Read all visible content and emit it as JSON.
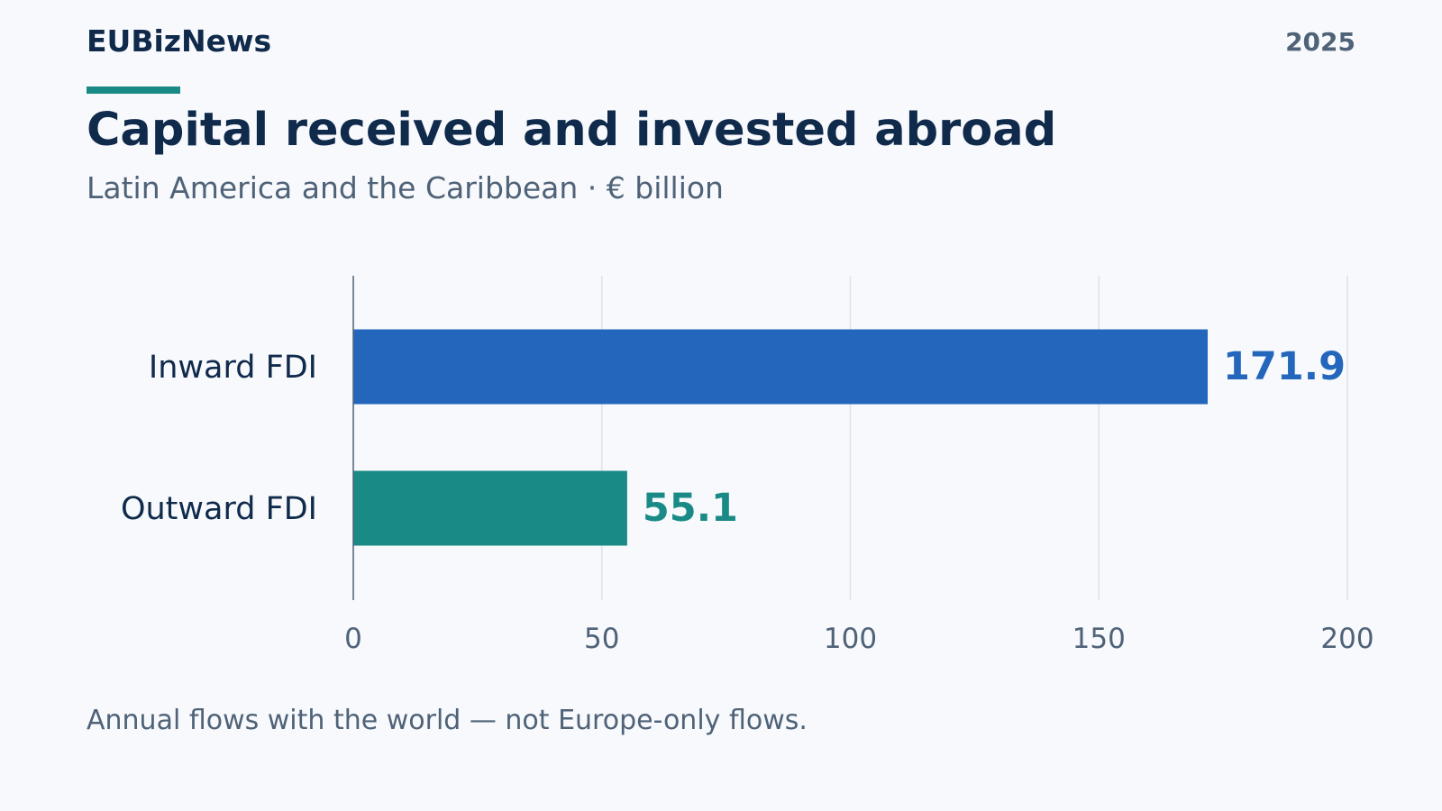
{
  "header": {
    "brand": "EUBizNews",
    "year": "2025",
    "title": "Capital received and invested abroad",
    "subtitle": "Latin America and the Caribbean · € billion"
  },
  "footnote": "Annual flows with the world — not Europe-only flows.",
  "colors": {
    "accent": "#1a8a86",
    "inward": "#2466bc",
    "outward": "#1a8a86",
    "text_dark": "#102a4c",
    "text_muted": "#4f6278",
    "grid": "#dde3ea",
    "axis": "#4f6278"
  },
  "chart_data": {
    "type": "bar",
    "orientation": "horizontal",
    "categories": [
      "Inward FDI",
      "Outward FDI"
    ],
    "values": [
      171.9,
      55.1
    ],
    "value_labels": [
      "171.9",
      "55.1"
    ],
    "xlim": [
      0,
      200
    ],
    "xticks": [
      0,
      50,
      100,
      150,
      200
    ],
    "grid": true
  }
}
